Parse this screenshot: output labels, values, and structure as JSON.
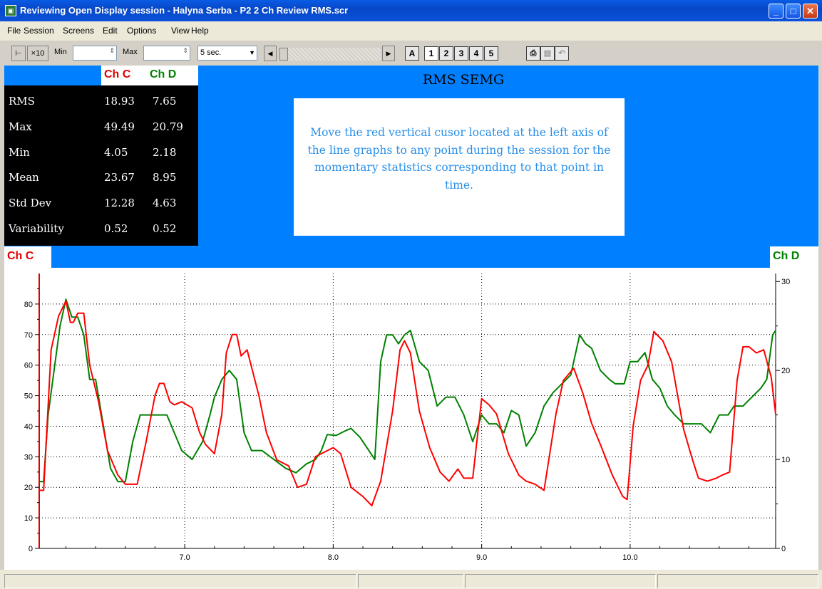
{
  "window": {
    "title": "Reviewing Open Display session - Halyna Serba - P2 2 Ch Review RMS.scr"
  },
  "menu": [
    "File",
    "Session",
    "Screens",
    "Edit",
    "Options",
    "View",
    "Help"
  ],
  "toolbar": {
    "x10": "×10",
    "min_label": "Min",
    "max_label": "Max",
    "timescale": "5 sec.",
    "auto_label": "A",
    "screens": [
      "1",
      "2",
      "3",
      "4",
      "5"
    ],
    "selected_screen": "1"
  },
  "stats": {
    "header_c": "Ch C",
    "header_d": "Ch D",
    "rows": [
      {
        "label": "RMS",
        "c": "18.93",
        "d": "7.65"
      },
      {
        "label": "Max",
        "c": "49.49",
        "d": "20.79"
      },
      {
        "label": "Min",
        "c": "4.05",
        "d": "2.18"
      },
      {
        "label": "Mean",
        "c": "23.67",
        "d": "8.95"
      },
      {
        "label": "Std Dev",
        "c": "12.28",
        "d": "4.63"
      },
      {
        "label": "Variability",
        "c": "0.52",
        "d": "0.52"
      }
    ]
  },
  "rms_title": "RMS SEMG",
  "instructions": "Move the red vertical cusor located at the left axis of the line graphs to any point during the session for the momentary statistics corresponding to that point in time.",
  "channel_labels": {
    "left": "Ch C",
    "right": "Ch D"
  },
  "colors": {
    "chC": "#ff0000",
    "chD": "#008000",
    "background": "#0080ff"
  },
  "chart_data": {
    "type": "line",
    "grid": true,
    "xlim": [
      6.02,
      10.98
    ],
    "x_ticks": [
      "7.0",
      "8.0",
      "9.0",
      "10.0"
    ],
    "y_left": {
      "ylim": [
        0,
        90
      ],
      "ticks": [
        "0",
        "10",
        "20",
        "30",
        "40",
        "50",
        "60",
        "70",
        "80"
      ]
    },
    "y_right": {
      "ylim": [
        0,
        30.9
      ],
      "ticks": [
        "0",
        "10",
        "20",
        "30"
      ]
    },
    "series": [
      {
        "name": "Ch C",
        "axis": "left",
        "x": [
          6.02,
          6.05,
          6.1,
          6.15,
          6.2,
          6.23,
          6.25,
          6.28,
          6.32,
          6.36,
          6.42,
          6.48,
          6.55,
          6.6,
          6.68,
          6.74,
          6.8,
          6.83,
          6.86,
          6.9,
          6.93,
          6.98,
          7.05,
          7.1,
          7.14,
          7.2,
          7.25,
          7.28,
          7.32,
          7.35,
          7.38,
          7.42,
          7.5,
          7.55,
          7.62,
          7.7,
          7.76,
          7.82,
          7.88,
          7.92,
          8.0,
          8.05,
          8.12,
          8.2,
          8.26,
          8.32,
          8.4,
          8.45,
          8.48,
          8.52,
          8.58,
          8.65,
          8.72,
          8.78,
          8.84,
          8.88,
          8.94,
          9.0,
          9.05,
          9.1,
          9.18,
          9.25,
          9.3,
          9.36,
          9.42,
          9.5,
          9.55,
          9.62,
          9.68,
          9.74,
          9.8,
          9.88,
          9.95,
          9.98,
          10.02,
          10.07,
          10.12,
          10.16,
          10.22,
          10.28,
          10.36,
          10.42,
          10.46,
          10.52,
          10.58,
          10.62,
          10.67,
          10.72,
          10.76,
          10.8,
          10.85,
          10.9,
          10.95,
          10.98
        ],
        "values": [
          19,
          19,
          65,
          76,
          81,
          74,
          74,
          77,
          77,
          60,
          48,
          32,
          24,
          21,
          21,
          35,
          50,
          54,
          54,
          48,
          47,
          48,
          46,
          38,
          34,
          31,
          44,
          64,
          70,
          70,
          63,
          65,
          50,
          38,
          29,
          27,
          20,
          21,
          30,
          31,
          33,
          31,
          20,
          17,
          14,
          22,
          45,
          65,
          68,
          64,
          45,
          33,
          25,
          22,
          26,
          23,
          23,
          49,
          47,
          44,
          31,
          24,
          22,
          21,
          19,
          44,
          55,
          59,
          51,
          41,
          34,
          24,
          17,
          16,
          40,
          55,
          60,
          71,
          68,
          61,
          39,
          29,
          23,
          22,
          23,
          24,
          25,
          55,
          66,
          66,
          64,
          65,
          56,
          44
        ]
      },
      {
        "name": "Ch D",
        "axis": "right",
        "x": [
          6.02,
          6.05,
          6.08,
          6.12,
          6.16,
          6.2,
          6.24,
          6.28,
          6.32,
          6.36,
          6.4,
          6.45,
          6.5,
          6.55,
          6.6,
          6.65,
          6.7,
          6.76,
          6.82,
          6.88,
          6.93,
          6.98,
          7.05,
          7.12,
          7.17,
          7.2,
          7.25,
          7.3,
          7.35,
          7.4,
          7.45,
          7.52,
          7.6,
          7.68,
          7.75,
          7.82,
          7.88,
          7.92,
          7.96,
          8.02,
          8.08,
          8.12,
          8.18,
          8.24,
          8.28,
          8.32,
          8.36,
          8.4,
          8.44,
          8.48,
          8.52,
          8.58,
          8.64,
          8.7,
          8.76,
          8.82,
          8.88,
          8.94,
          9.0,
          9.05,
          9.1,
          9.15,
          9.2,
          9.25,
          9.3,
          9.36,
          9.42,
          9.48,
          9.54,
          9.6,
          9.66,
          9.7,
          9.74,
          9.8,
          9.86,
          9.9,
          9.96,
          10.0,
          10.05,
          10.1,
          10.15,
          10.2,
          10.25,
          10.3,
          10.36,
          10.42,
          10.48,
          10.54,
          10.6,
          10.66,
          10.7,
          10.76,
          10.82,
          10.88,
          10.92,
          10.96,
          10.98
        ],
        "values": [
          7.5,
          7.5,
          15,
          20,
          25,
          28,
          26,
          26,
          24,
          19,
          19,
          14,
          9,
          7.5,
          7.5,
          12,
          15,
          15,
          15,
          15,
          13,
          11,
          10,
          12,
          15,
          17,
          19,
          20,
          19,
          13,
          11,
          11,
          10,
          9,
          8.5,
          9.5,
          10,
          11,
          12.8,
          12.7,
          13.2,
          13.5,
          12.5,
          11,
          10,
          21,
          24,
          24,
          23,
          24,
          24.5,
          21,
          20,
          16,
          17,
          17,
          15,
          12,
          15,
          14,
          14,
          13,
          15.5,
          15,
          11.5,
          13,
          16,
          17.5,
          18.5,
          19.5,
          24,
          23,
          22.5,
          20,
          19,
          18.5,
          18.5,
          21,
          21,
          22,
          19,
          18,
          16,
          15,
          14,
          14,
          14,
          13,
          15,
          15,
          16,
          16,
          17,
          18,
          19,
          24,
          24.5
        ]
      }
    ]
  }
}
